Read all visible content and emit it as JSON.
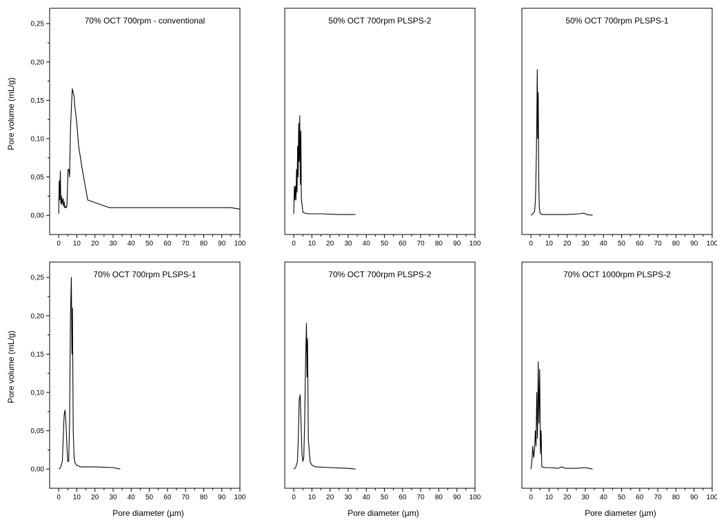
{
  "figure": {
    "ylabel": "Pore volume (mL/g)",
    "xlabel": "Pore diameter (µm)"
  },
  "chart_data": [
    {
      "type": "line",
      "title": "70% OCT 700rpm - conventional",
      "xlabel": "",
      "ylabel": "Pore volume (mL/g)",
      "xlim": [
        -5,
        100
      ],
      "ylim": [
        -0.025,
        0.27
      ],
      "xticks": [
        "0",
        "10",
        "20",
        "30",
        "40",
        "50",
        "60",
        "70",
        "80",
        "90",
        "100"
      ],
      "yticks": [
        "0,00",
        "0,05",
        "0,10",
        "0,15",
        "0,20",
        "0,25"
      ],
      "x": [
        0,
        0.3,
        0.6,
        0.9,
        1.2,
        1.5,
        1.8,
        2.1,
        2.4,
        2.7,
        3.0,
        3.3,
        3.6,
        3.9,
        4.2,
        4.5,
        4.8,
        5.2,
        5.6,
        6.0,
        6.5,
        7.0,
        7.5,
        8.0,
        8.5,
        9.0,
        10,
        11,
        13,
        16,
        28,
        95,
        100
      ],
      "y": [
        0.002,
        0.045,
        0.02,
        0.058,
        0.015,
        0.025,
        0.014,
        0.02,
        0.022,
        0.012,
        0.018,
        0.01,
        0.01,
        0.012,
        0.01,
        0.012,
        0.035,
        0.06,
        0.06,
        0.05,
        0.11,
        0.14,
        0.165,
        0.16,
        0.155,
        0.14,
        0.12,
        0.09,
        0.06,
        0.02,
        0.01,
        0.01,
        0.008
      ]
    },
    {
      "type": "line",
      "title": "50% OCT 700rpm PLSPS-2",
      "xlabel": "",
      "ylabel": "",
      "xlim": [
        -5,
        100
      ],
      "ylim": [
        -0.025,
        0.27
      ],
      "xticks": [
        "0",
        "10",
        "20",
        "30",
        "40",
        "50",
        "60",
        "70",
        "80",
        "90",
        "100"
      ],
      "yticks": [],
      "x": [
        0,
        0.3,
        0.6,
        0.9,
        1.2,
        1.5,
        1.8,
        2.1,
        2.4,
        2.7,
        3.0,
        3.3,
        3.6,
        3.9,
        4.2,
        4.5,
        5.0,
        6,
        8,
        15,
        25,
        34
      ],
      "y": [
        0.002,
        0.038,
        0.02,
        0.038,
        0.02,
        0.06,
        0.03,
        0.09,
        0.05,
        0.12,
        0.07,
        0.13,
        0.04,
        0.11,
        0.02,
        0.015,
        0.004,
        0.003,
        0.002,
        0.002,
        0.001,
        0.001
      ]
    },
    {
      "type": "line",
      "title": "50% OCT 700rpm PLSPS-1",
      "xlabel": "",
      "ylabel": "",
      "xlim": [
        -5,
        100
      ],
      "ylim": [
        -0.025,
        0.27
      ],
      "xticks": [
        "0",
        "10",
        "20",
        "30",
        "40",
        "50",
        "60",
        "70",
        "80",
        "90",
        "100"
      ],
      "yticks": [],
      "x": [
        0,
        1,
        2,
        2.5,
        3.0,
        3.2,
        3.5,
        3.7,
        4.0,
        4.3,
        4.6,
        5.0,
        6,
        10,
        20,
        27,
        29,
        31,
        34
      ],
      "y": [
        0.0,
        0.002,
        0.005,
        0.02,
        0.08,
        0.12,
        0.19,
        0.1,
        0.16,
        0.05,
        0.01,
        0.003,
        0.001,
        0.001,
        0.001,
        0.002,
        0.003,
        0.001,
        0.0
      ]
    },
    {
      "type": "line",
      "title": "70% OCT 700rpm PLSPS-1",
      "xlabel": "Pore diameter (µm)",
      "ylabel": "Pore volume (mL/g)",
      "xlim": [
        -5,
        100
      ],
      "ylim": [
        -0.025,
        0.27
      ],
      "xticks": [
        "0",
        "10",
        "20",
        "30",
        "40",
        "50",
        "60",
        "70",
        "80",
        "90",
        "100"
      ],
      "yticks": [
        "0,00",
        "0,05",
        "0,10",
        "0,15",
        "0,20",
        "0,25"
      ],
      "x": [
        0,
        1,
        2,
        2.5,
        3,
        3.5,
        4,
        4.5,
        5,
        5.5,
        6,
        6.5,
        7,
        7.3,
        7.6,
        8,
        8.5,
        9,
        10,
        12,
        20,
        30,
        34
      ],
      "y": [
        0.0,
        0.002,
        0.01,
        0.04,
        0.07,
        0.077,
        0.06,
        0.03,
        0.01,
        0.01,
        0.06,
        0.2,
        0.25,
        0.15,
        0.21,
        0.05,
        0.015,
        0.008,
        0.005,
        0.003,
        0.003,
        0.002,
        0.0
      ]
    },
    {
      "type": "line",
      "title": "70% OCT 700rpm PLSPS-2",
      "xlabel": "Pore diameter (µm)",
      "ylabel": "",
      "xlim": [
        -5,
        100
      ],
      "ylim": [
        -0.025,
        0.27
      ],
      "xticks": [
        "0",
        "10",
        "20",
        "30",
        "40",
        "50",
        "60",
        "70",
        "80",
        "90",
        "100"
      ],
      "yticks": [],
      "x": [
        0,
        1,
        2,
        2.5,
        3,
        3.5,
        4,
        4.5,
        5,
        5.5,
        6,
        6.5,
        7,
        7.3,
        7.6,
        8,
        9,
        10,
        12,
        20,
        30,
        34
      ],
      "y": [
        0.0,
        0.002,
        0.01,
        0.04,
        0.09,
        0.097,
        0.06,
        0.02,
        0.01,
        0.015,
        0.06,
        0.14,
        0.19,
        0.12,
        0.17,
        0.04,
        0.01,
        0.005,
        0.003,
        0.002,
        0.001,
        0.0
      ]
    },
    {
      "type": "line",
      "title": "70% OCT 1000rpm PLSPS-2",
      "xlabel": "Pore diameter (µm)",
      "ylabel": "",
      "xlim": [
        -5,
        100
      ],
      "ylim": [
        -0.025,
        0.27
      ],
      "xticks": [
        "0",
        "10",
        "20",
        "30",
        "40",
        "50",
        "60",
        "70",
        "80",
        "90",
        "100"
      ],
      "yticks": [],
      "x": [
        0,
        0.5,
        1,
        1.5,
        2,
        2.4,
        2.8,
        3.2,
        3.6,
        4.0,
        4.4,
        4.8,
        5.2,
        5.6,
        6,
        8,
        10,
        15,
        17,
        19,
        25,
        30,
        32,
        34
      ],
      "y": [
        0.0,
        0.01,
        0.03,
        0.015,
        0.025,
        0.05,
        0.03,
        0.1,
        0.04,
        0.14,
        0.06,
        0.13,
        0.02,
        0.05,
        0.003,
        0.002,
        0.002,
        0.001,
        0.003,
        0.001,
        0.001,
        0.002,
        0.001,
        0.0
      ]
    }
  ]
}
